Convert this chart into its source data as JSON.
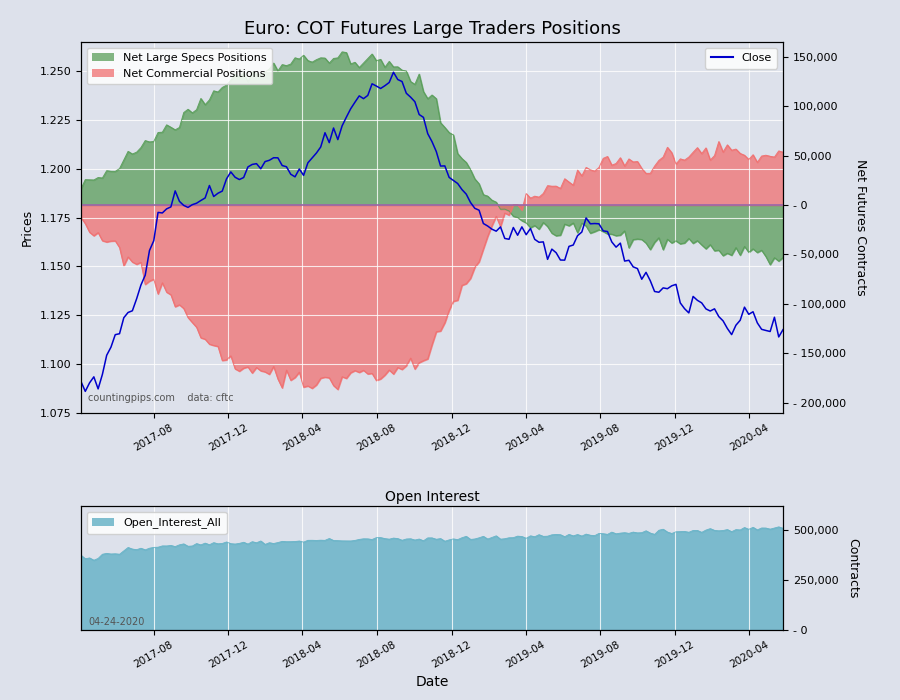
{
  "title": "Euro: COT Futures Large Traders Positions",
  "title_fontsize": 13,
  "bg_color": "#dde1eb",
  "plot_bg_color": "#dde1eb",
  "xlabel": "Date",
  "ylabel_left": "Prices",
  "ylabel_right": "Net Futures Contracts",
  "ylabel_right2": "Contracts",
  "subtitle_bottom": "countingpips.com    data: cftc",
  "watermark": "04-24-2020",
  "green_color": "#5a9e5a",
  "red_color": "#f07070",
  "blue_color": "#0000cc",
  "teal_color": "#6ab4c8",
  "price_ylim": [
    1.075,
    1.265
  ],
  "cot_ylim": [
    -210000,
    165000
  ],
  "oi_ylim": [
    0,
    620000
  ],
  "price_yticks": [
    1.075,
    1.1,
    1.125,
    1.15,
    1.175,
    1.2,
    1.225,
    1.25
  ],
  "cot_yticks": [
    -200000,
    -150000,
    -100000,
    -50000,
    0,
    50000,
    100000,
    150000
  ],
  "oi_yticks": [
    0,
    250000,
    500000
  ],
  "legend1_label": "Net Large Specs Positions",
  "legend2_label": "Net Commercial Positions",
  "legend3_label": "Close",
  "legend4_label": "Open_Interest_All"
}
